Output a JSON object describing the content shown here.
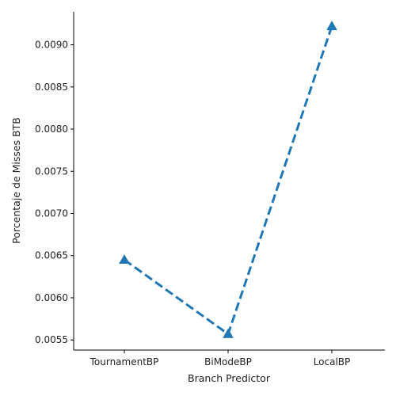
{
  "chart_data": {
    "type": "line",
    "xlabel": "Branch Predictor",
    "ylabel": "Porcentaje de Misses BTB",
    "categories": [
      "TournamentBP",
      "BiModeBP",
      "LocalBP"
    ],
    "series": [
      {
        "values": [
          0.00645,
          0.00557,
          0.00922
        ]
      }
    ],
    "yticks": [
      "0.0055",
      "0.0060",
      "0.0065",
      "0.0070",
      "0.0075",
      "0.0080",
      "0.0085",
      "0.0090"
    ],
    "ylim": [
      0.00538,
      0.00939
    ],
    "line_style": "dashed",
    "marker": "triangle-up",
    "color": "#1f77b4",
    "grid": false,
    "spines": "left-bottom"
  }
}
